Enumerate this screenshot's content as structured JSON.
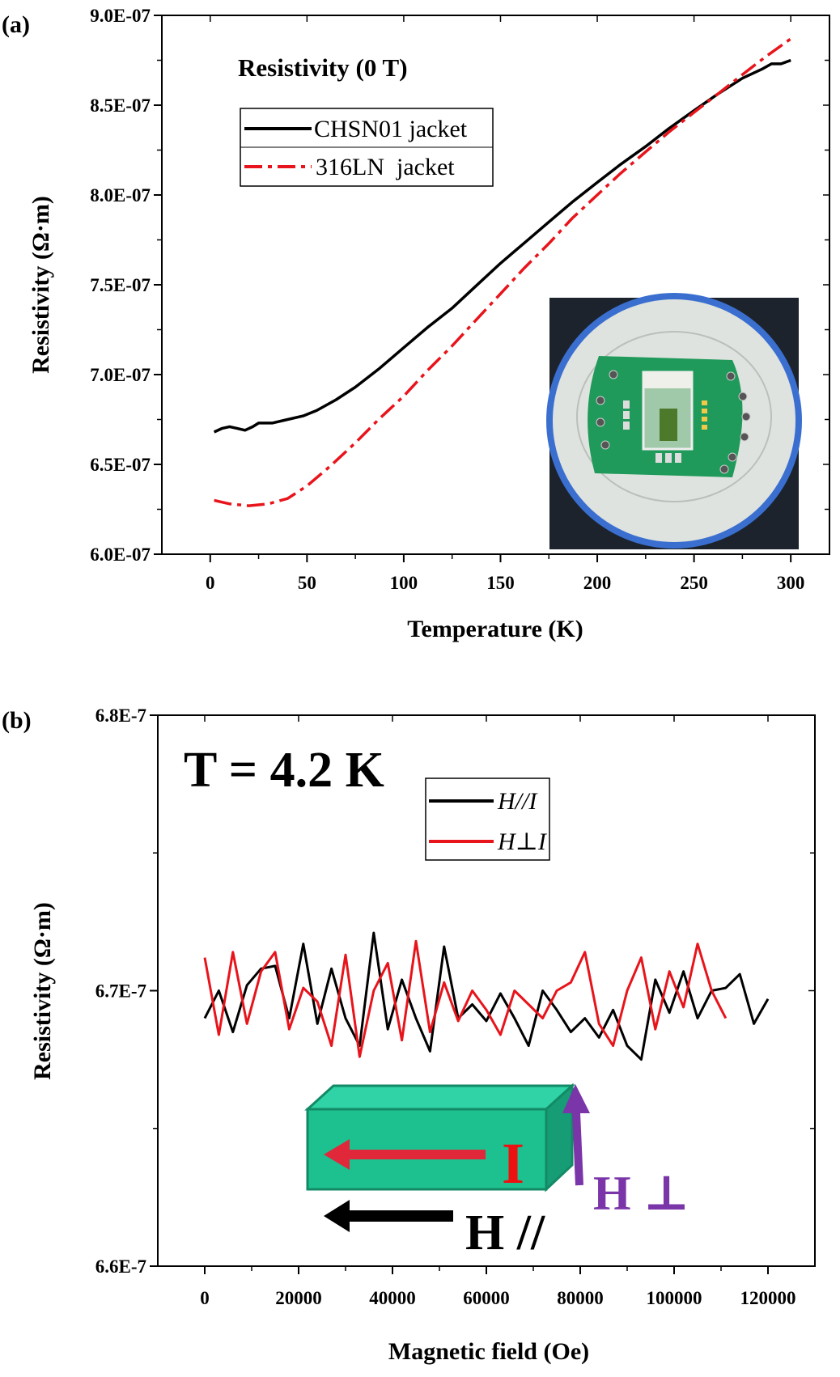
{
  "chart_data": [
    {
      "panel_label": "(a)",
      "type": "line",
      "title": "Resistivity (0 T)",
      "xlabel": "Temperature (K)",
      "ylabel": "Resistivity (Ω·m)",
      "xlim": [
        -25,
        320
      ],
      "ylim": [
        6e-07,
        9e-07
      ],
      "xticks": [
        0,
        50,
        100,
        150,
        200,
        250,
        300
      ],
      "xtick_labels": [
        "0",
        "50",
        "100",
        "150",
        "200",
        "250",
        "300"
      ],
      "yticks": [
        6e-07,
        6.5e-07,
        7e-07,
        7.5e-07,
        8e-07,
        8.5e-07,
        9e-07
      ],
      "ytick_labels": [
        "6.0E-07",
        "6.5E-07",
        "7.0E-07",
        "7.5E-07",
        "8.0E-07",
        "8.5E-07",
        "9.0E-07"
      ],
      "legend_position": "top-left",
      "inset": "photo of sample holder circuit board",
      "series": [
        {
          "name": "CHSN01 jacket",
          "color": "#000000",
          "style": "solid",
          "x": [
            2,
            6,
            10,
            14,
            18,
            22,
            25,
            32,
            40,
            48,
            55,
            65,
            75,
            87,
            100,
            112,
            125,
            137,
            150,
            162,
            175,
            187,
            200,
            212,
            225,
            237,
            250,
            262,
            275,
            285,
            290,
            295,
            300
          ],
          "y": [
            6.68e-07,
            6.7e-07,
            6.71e-07,
            6.7e-07,
            6.69e-07,
            6.71e-07,
            6.73e-07,
            6.73e-07,
            6.75e-07,
            6.77e-07,
            6.8e-07,
            6.86e-07,
            6.93e-07,
            7.03e-07,
            7.15e-07,
            7.26e-07,
            7.37e-07,
            7.49e-07,
            7.62e-07,
            7.73e-07,
            7.85e-07,
            7.96e-07,
            8.07e-07,
            8.17e-07,
            8.27e-07,
            8.37e-07,
            8.47e-07,
            8.56e-07,
            8.65e-07,
            8.7e-07,
            8.73e-07,
            8.73e-07,
            8.75e-07
          ]
        },
        {
          "name": "316LN  jacket",
          "color": "#e8141b",
          "style": "dash-dot",
          "x": [
            2,
            10,
            20,
            30,
            40,
            50,
            62,
            75,
            87,
            100,
            112,
            125,
            137,
            150,
            162,
            175,
            187,
            200,
            212,
            225,
            237,
            250,
            262,
            275,
            287,
            300
          ],
          "y": [
            6.3e-07,
            6.28e-07,
            6.27e-07,
            6.28e-07,
            6.31e-07,
            6.38e-07,
            6.49e-07,
            6.62e-07,
            6.75e-07,
            6.88e-07,
            7.02e-07,
            7.16e-07,
            7.3e-07,
            7.45e-07,
            7.59e-07,
            7.73e-07,
            7.87e-07,
            8e-07,
            8.12e-07,
            8.24e-07,
            8.35e-07,
            8.46e-07,
            8.56e-07,
            8.67e-07,
            8.77e-07,
            8.87e-07
          ]
        }
      ]
    },
    {
      "panel_label": "(b)",
      "type": "line",
      "annotation": "T = 4.2 K",
      "xlabel": "Magnetic field (Oe)",
      "ylabel": "Resistivity (Ω·m)",
      "xlim": [
        -10000,
        130000
      ],
      "ylim": [
        6.6e-07,
        6.8e-07
      ],
      "xticks": [
        0,
        20000,
        40000,
        60000,
        80000,
        100000,
        120000
      ],
      "xtick_labels": [
        "0",
        "20000",
        "40000",
        "60000",
        "80000",
        "100000",
        "120000"
      ],
      "yticks": [
        6.6e-07,
        6.7e-07,
        6.8e-07
      ],
      "ytick_labels": [
        "6.6E-7",
        "6.7E-7",
        "6.8E-7"
      ],
      "legend_position": "top-center",
      "diagram_labels": {
        "current": "I",
        "h_perp": "H ⊥",
        "h_par": "H //"
      },
      "series": [
        {
          "name": "H//I",
          "color": "#000000",
          "x": [
            0,
            3000,
            6000,
            9000,
            12000,
            15000,
            18000,
            21000,
            24000,
            27000,
            30000,
            33000,
            36000,
            39000,
            42000,
            45000,
            48000,
            51000,
            54000,
            57000,
            60000,
            63000,
            66000,
            69000,
            72000,
            75000,
            78000,
            81000,
            84000,
            87000,
            90000,
            93000,
            96000,
            99000,
            102000,
            105000,
            108000,
            111000,
            114000,
            117000,
            120000
          ],
          "y": [
            6.69e-07,
            6.7e-07,
            6.685e-07,
            6.702e-07,
            6.708e-07,
            6.709e-07,
            6.69e-07,
            6.717e-07,
            6.688e-07,
            6.708e-07,
            6.69e-07,
            6.68e-07,
            6.721e-07,
            6.686e-07,
            6.704e-07,
            6.69e-07,
            6.678e-07,
            6.716e-07,
            6.69e-07,
            6.695e-07,
            6.689e-07,
            6.699e-07,
            6.69e-07,
            6.68e-07,
            6.7e-07,
            6.693e-07,
            6.685e-07,
            6.69e-07,
            6.683e-07,
            6.693e-07,
            6.68e-07,
            6.675e-07,
            6.704e-07,
            6.692e-07,
            6.707e-07,
            6.69e-07,
            6.7e-07,
            6.701e-07,
            6.706e-07,
            6.688e-07,
            6.697e-07
          ]
        },
        {
          "name": "H⊥I",
          "color": "#e8141b",
          "x": [
            0,
            3000,
            6000,
            9000,
            12000,
            15000,
            18000,
            21000,
            24000,
            27000,
            30000,
            33000,
            36000,
            39000,
            42000,
            45000,
            48000,
            51000,
            54000,
            57000,
            60000,
            63000,
            66000,
            69000,
            72000,
            75000,
            78000,
            81000,
            84000,
            87000,
            90000,
            93000,
            96000,
            99000,
            102000,
            105000,
            108000,
            111000
          ],
          "y": [
            6.712e-07,
            6.684e-07,
            6.714e-07,
            6.688e-07,
            6.707e-07,
            6.714e-07,
            6.686e-07,
            6.701e-07,
            6.696e-07,
            6.68e-07,
            6.713e-07,
            6.676e-07,
            6.7e-07,
            6.71e-07,
            6.682e-07,
            6.718e-07,
            6.685e-07,
            6.703e-07,
            6.689e-07,
            6.7e-07,
            6.693e-07,
            6.684e-07,
            6.7e-07,
            6.695e-07,
            6.69e-07,
            6.7e-07,
            6.703e-07,
            6.714e-07,
            6.688e-07,
            6.68e-07,
            6.7e-07,
            6.712e-07,
            6.686e-07,
            6.707e-07,
            6.694e-07,
            6.717e-07,
            6.7e-07,
            6.69e-07
          ]
        }
      ]
    }
  ]
}
